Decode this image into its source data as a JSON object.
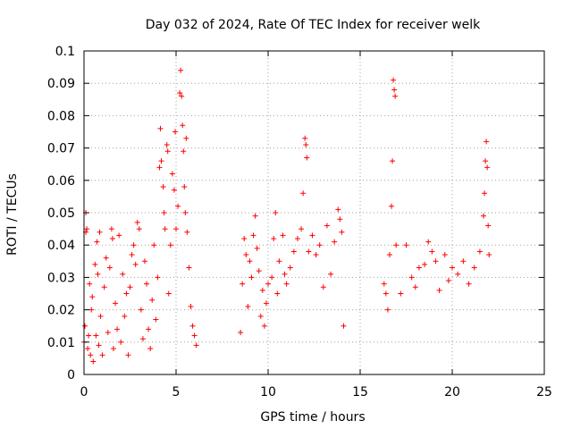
{
  "chart_data": {
    "type": "scatter",
    "title": "Day 032 of 2024, Rate Of TEC Index for receiver welk",
    "xlabel": "GPS time / hours",
    "ylabel": "ROTI / TECUs",
    "xlim": [
      0,
      25
    ],
    "ylim": [
      0,
      0.1
    ],
    "xticks": [
      0,
      5,
      10,
      15,
      20,
      25
    ],
    "yticks": [
      0,
      0.01,
      0.02,
      0.03,
      0.04,
      0.05,
      0.06,
      0.07,
      0.08,
      0.09,
      0.1
    ],
    "grid": true,
    "marker": "+",
    "color": "#ff0000",
    "series": [
      {
        "points": [
          [
            0.0,
            0.01
          ],
          [
            0.05,
            0.015
          ],
          [
            0.1,
            0.05
          ],
          [
            0.1,
            0.044
          ],
          [
            0.15,
            0.045
          ],
          [
            0.2,
            0.008
          ],
          [
            0.25,
            0.012
          ],
          [
            0.3,
            0.028
          ],
          [
            0.35,
            0.006
          ],
          [
            0.4,
            0.02
          ],
          [
            0.45,
            0.024
          ],
          [
            0.5,
            0.004
          ],
          [
            0.6,
            0.034
          ],
          [
            0.65,
            0.012
          ],
          [
            0.7,
            0.041
          ],
          [
            0.75,
            0.031
          ],
          [
            0.8,
            0.009
          ],
          [
            0.85,
            0.044
          ],
          [
            0.9,
            0.018
          ],
          [
            1.0,
            0.006
          ],
          [
            1.1,
            0.027
          ],
          [
            1.2,
            0.036
          ],
          [
            1.3,
            0.013
          ],
          [
            1.4,
            0.033
          ],
          [
            1.5,
            0.045
          ],
          [
            1.55,
            0.042
          ],
          [
            1.6,
            0.008
          ],
          [
            1.7,
            0.022
          ],
          [
            1.8,
            0.014
          ],
          [
            1.9,
            0.043
          ],
          [
            2.0,
            0.01
          ],
          [
            2.1,
            0.031
          ],
          [
            2.2,
            0.018
          ],
          [
            2.3,
            0.025
          ],
          [
            2.4,
            0.006
          ],
          [
            2.5,
            0.027
          ],
          [
            2.6,
            0.037
          ],
          [
            2.7,
            0.04
          ],
          [
            2.8,
            0.034
          ],
          [
            2.9,
            0.047
          ],
          [
            3.0,
            0.045
          ],
          [
            3.1,
            0.02
          ],
          [
            3.2,
            0.011
          ],
          [
            3.3,
            0.035
          ],
          [
            3.4,
            0.028
          ],
          [
            3.5,
            0.014
          ],
          [
            3.6,
            0.008
          ],
          [
            3.7,
            0.023
          ],
          [
            3.8,
            0.04
          ],
          [
            3.9,
            0.017
          ],
          [
            4.0,
            0.03
          ],
          [
            4.1,
            0.064
          ],
          [
            4.15,
            0.076
          ],
          [
            4.2,
            0.066
          ],
          [
            4.3,
            0.058
          ],
          [
            4.35,
            0.05
          ],
          [
            4.4,
            0.045
          ],
          [
            4.5,
            0.071
          ],
          [
            4.55,
            0.069
          ],
          [
            4.6,
            0.025
          ],
          [
            4.7,
            0.04
          ],
          [
            4.8,
            0.062
          ],
          [
            4.9,
            0.057
          ],
          [
            4.95,
            0.075
          ],
          [
            5.0,
            0.045
          ],
          [
            5.1,
            0.052
          ],
          [
            5.2,
            0.087
          ],
          [
            5.25,
            0.094
          ],
          [
            5.3,
            0.086
          ],
          [
            5.35,
            0.077
          ],
          [
            5.4,
            0.069
          ],
          [
            5.45,
            0.058
          ],
          [
            5.5,
            0.05
          ],
          [
            5.55,
            0.073
          ],
          [
            5.6,
            0.044
          ],
          [
            5.7,
            0.033
          ],
          [
            5.8,
            0.021
          ],
          [
            5.9,
            0.015
          ],
          [
            6.0,
            0.012
          ],
          [
            6.1,
            0.009
          ],
          [
            8.5,
            0.013
          ],
          [
            8.6,
            0.028
          ],
          [
            8.7,
            0.042
          ],
          [
            8.8,
            0.037
          ],
          [
            8.9,
            0.021
          ],
          [
            9.0,
            0.035
          ],
          [
            9.1,
            0.03
          ],
          [
            9.2,
            0.043
          ],
          [
            9.3,
            0.049
          ],
          [
            9.4,
            0.039
          ],
          [
            9.5,
            0.032
          ],
          [
            9.6,
            0.018
          ],
          [
            9.7,
            0.026
          ],
          [
            9.8,
            0.015
          ],
          [
            9.9,
            0.022
          ],
          [
            10.0,
            0.028
          ],
          [
            10.2,
            0.03
          ],
          [
            10.3,
            0.042
          ],
          [
            10.4,
            0.05
          ],
          [
            10.5,
            0.025
          ],
          [
            10.6,
            0.035
          ],
          [
            10.8,
            0.043
          ],
          [
            10.9,
            0.031
          ],
          [
            11.0,
            0.028
          ],
          [
            11.2,
            0.033
          ],
          [
            11.4,
            0.038
          ],
          [
            11.6,
            0.042
          ],
          [
            11.8,
            0.045
          ],
          [
            11.9,
            0.056
          ],
          [
            12.0,
            0.073
          ],
          [
            12.05,
            0.071
          ],
          [
            12.1,
            0.067
          ],
          [
            12.2,
            0.038
          ],
          [
            12.4,
            0.043
          ],
          [
            12.6,
            0.037
          ],
          [
            12.8,
            0.04
          ],
          [
            13.0,
            0.027
          ],
          [
            13.2,
            0.046
          ],
          [
            13.4,
            0.031
          ],
          [
            13.6,
            0.041
          ],
          [
            13.8,
            0.051
          ],
          [
            13.9,
            0.048
          ],
          [
            14.0,
            0.044
          ],
          [
            14.1,
            0.015
          ],
          [
            16.3,
            0.028
          ],
          [
            16.4,
            0.025
          ],
          [
            16.5,
            0.02
          ],
          [
            16.6,
            0.037
          ],
          [
            16.7,
            0.052
          ],
          [
            16.75,
            0.066
          ],
          [
            16.8,
            0.091
          ],
          [
            16.85,
            0.088
          ],
          [
            16.9,
            0.086
          ],
          [
            16.95,
            0.04
          ],
          [
            17.2,
            0.025
          ],
          [
            17.5,
            0.04
          ],
          [
            17.8,
            0.03
          ],
          [
            18.0,
            0.027
          ],
          [
            18.2,
            0.033
          ],
          [
            18.5,
            0.034
          ],
          [
            18.7,
            0.041
          ],
          [
            18.9,
            0.038
          ],
          [
            19.1,
            0.035
          ],
          [
            19.3,
            0.026
          ],
          [
            19.6,
            0.037
          ],
          [
            19.8,
            0.029
          ],
          [
            20.0,
            0.033
          ],
          [
            20.3,
            0.031
          ],
          [
            20.6,
            0.035
          ],
          [
            20.9,
            0.028
          ],
          [
            21.2,
            0.033
          ],
          [
            21.5,
            0.038
          ],
          [
            21.7,
            0.049
          ],
          [
            21.75,
            0.056
          ],
          [
            21.8,
            0.066
          ],
          [
            21.85,
            0.072
          ],
          [
            21.9,
            0.064
          ],
          [
            21.95,
            0.046
          ],
          [
            22.0,
            0.037
          ]
        ]
      }
    ]
  }
}
